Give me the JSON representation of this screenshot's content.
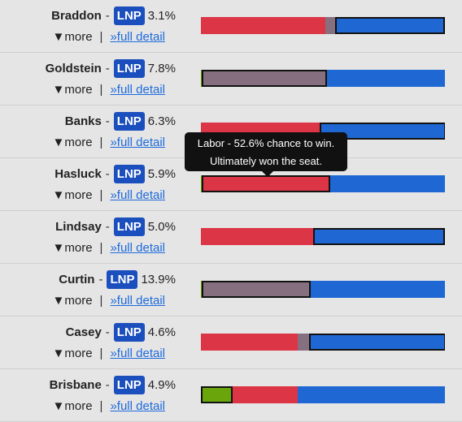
{
  "more_label": "▼more",
  "separator": "|",
  "detail_label": "»full detail",
  "colors": {
    "labor": "#dc3545",
    "other": "#86707f",
    "lnp": "#1f68d3",
    "green": "#6aa50b"
  },
  "seats": [
    {
      "name": "Braddon",
      "party": "LNP",
      "margin": "3.1%",
      "segments": [
        {
          "party": "labor",
          "share": 0.51
        },
        {
          "party": "other",
          "share": 0.04
        },
        {
          "party": "lnp",
          "share": 0.45,
          "highlight": true
        }
      ]
    },
    {
      "name": "Goldstein",
      "party": "LNP",
      "margin": "7.8%",
      "segments": [
        {
          "party": "green",
          "share": 0.003
        },
        {
          "party": "other",
          "share": 0.513,
          "highlight": true
        },
        {
          "party": "lnp",
          "share": 0.484
        }
      ]
    },
    {
      "name": "Banks",
      "party": "LNP",
      "margin": "6.3%",
      "segments": [
        {
          "party": "labor",
          "share": 0.485
        },
        {
          "party": "lnp",
          "share": 0.515,
          "highlight": true
        }
      ]
    },
    {
      "name": "Hasluck",
      "party": "LNP",
      "margin": "5.9%",
      "segments": [
        {
          "party": "green",
          "share": 0.003
        },
        {
          "party": "labor",
          "share": 0.526,
          "highlight": true
        },
        {
          "party": "lnp",
          "share": 0.471
        }
      ]
    },
    {
      "name": "Lindsay",
      "party": "LNP",
      "margin": "5.0%",
      "segments": [
        {
          "party": "labor",
          "share": 0.46
        },
        {
          "party": "lnp",
          "share": 0.54,
          "highlight": true
        }
      ]
    },
    {
      "name": "Curtin",
      "party": "LNP",
      "margin": "13.9%",
      "segments": [
        {
          "party": "green",
          "share": 0.003
        },
        {
          "party": "other",
          "share": 0.447,
          "highlight": true
        },
        {
          "party": "lnp",
          "share": 0.55
        }
      ]
    },
    {
      "name": "Casey",
      "party": "LNP",
      "margin": "4.6%",
      "segments": [
        {
          "party": "labor",
          "share": 0.395
        },
        {
          "party": "other",
          "share": 0.045
        },
        {
          "party": "lnp",
          "share": 0.56,
          "highlight": true
        }
      ]
    },
    {
      "name": "Brisbane",
      "party": "LNP",
      "margin": "4.9%",
      "segments": [
        {
          "party": "green",
          "share": 0.13,
          "highlight": true
        },
        {
          "party": "labor",
          "share": 0.265
        },
        {
          "party": "lnp",
          "share": 0.605
        }
      ]
    }
  ],
  "tooltip": {
    "line1": "Labor - 52.6% chance to win.",
    "line2": "Ultimately won the seat."
  }
}
